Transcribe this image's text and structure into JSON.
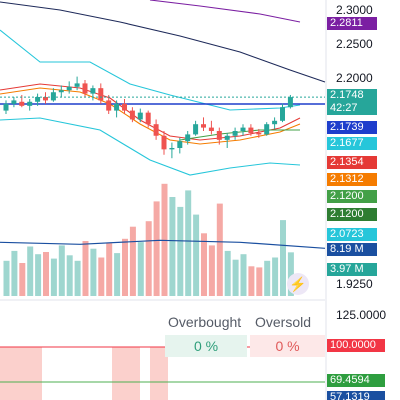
{
  "chart_data": {
    "type": "candlestick",
    "price_axis": {
      "ticks": [
        "2.3000",
        "2.2500",
        "2.2000",
        "1.9250"
      ]
    },
    "price_labels": [
      {
        "value": "2.2811",
        "color": "#7b1fa2"
      },
      {
        "value": "2.1748",
        "color": "#26a69a"
      },
      {
        "value": "42:27",
        "color": "#26a69a"
      },
      {
        "value": "2.1739",
        "color": "#1e3ecc"
      },
      {
        "value": "2.1677",
        "color": "#26c6da"
      },
      {
        "value": "2.1354",
        "color": "#e53935"
      },
      {
        "value": "2.1312",
        "color": "#f57c00"
      },
      {
        "value": "2.1200",
        "color": "#43a047"
      },
      {
        "value": "2.1200",
        "color": "#2e7d32"
      },
      {
        "value": "2.0723",
        "color": "#26c6da"
      },
      {
        "value": "8.19 M",
        "color": "#1a4fa0"
      },
      {
        "value": "3.97 M",
        "color": "#26a69a"
      }
    ],
    "candles": [
      {
        "o": 2.155,
        "h": 2.17,
        "l": 2.15,
        "c": 2.165
      },
      {
        "o": 2.165,
        "h": 2.175,
        "l": 2.16,
        "c": 2.17
      },
      {
        "o": 2.168,
        "h": 2.178,
        "l": 2.16,
        "c": 2.162
      },
      {
        "o": 2.162,
        "h": 2.172,
        "l": 2.155,
        "c": 2.168
      },
      {
        "o": 2.168,
        "h": 2.18,
        "l": 2.162,
        "c": 2.175
      },
      {
        "o": 2.175,
        "h": 2.182,
        "l": 2.165,
        "c": 2.17
      },
      {
        "o": 2.17,
        "h": 2.188,
        "l": 2.168,
        "c": 2.182
      },
      {
        "o": 2.182,
        "h": 2.192,
        "l": 2.175,
        "c": 2.185
      },
      {
        "o": 2.185,
        "h": 2.198,
        "l": 2.18,
        "c": 2.19
      },
      {
        "o": 2.19,
        "h": 2.205,
        "l": 2.185,
        "c": 2.195
      },
      {
        "o": 2.195,
        "h": 2.2,
        "l": 2.175,
        "c": 2.18
      },
      {
        "o": 2.18,
        "h": 2.192,
        "l": 2.17,
        "c": 2.188
      },
      {
        "o": 2.188,
        "h": 2.195,
        "l": 2.165,
        "c": 2.17
      },
      {
        "o": 2.17,
        "h": 2.178,
        "l": 2.15,
        "c": 2.155
      },
      {
        "o": 2.155,
        "h": 2.17,
        "l": 2.145,
        "c": 2.165
      },
      {
        "o": 2.165,
        "h": 2.172,
        "l": 2.15,
        "c": 2.155
      },
      {
        "o": 2.155,
        "h": 2.16,
        "l": 2.138,
        "c": 2.142
      },
      {
        "o": 2.142,
        "h": 2.158,
        "l": 2.138,
        "c": 2.152
      },
      {
        "o": 2.152,
        "h": 2.155,
        "l": 2.13,
        "c": 2.135
      },
      {
        "o": 2.135,
        "h": 2.142,
        "l": 2.112,
        "c": 2.118
      },
      {
        "o": 2.118,
        "h": 2.125,
        "l": 2.09,
        "c": 2.098
      },
      {
        "o": 2.098,
        "h": 2.108,
        "l": 2.085,
        "c": 2.1
      },
      {
        "o": 2.1,
        "h": 2.115,
        "l": 2.092,
        "c": 2.11
      },
      {
        "o": 2.11,
        "h": 2.125,
        "l": 2.105,
        "c": 2.12
      },
      {
        "o": 2.12,
        "h": 2.14,
        "l": 2.118,
        "c": 2.135
      },
      {
        "o": 2.135,
        "h": 2.145,
        "l": 2.125,
        "c": 2.13
      },
      {
        "o": 2.13,
        "h": 2.14,
        "l": 2.12,
        "c": 2.125
      },
      {
        "o": 2.125,
        "h": 2.13,
        "l": 2.105,
        "c": 2.112
      },
      {
        "o": 2.112,
        "h": 2.122,
        "l": 2.1,
        "c": 2.118
      },
      {
        "o": 2.118,
        "h": 2.13,
        "l": 2.112,
        "c": 2.125
      },
      {
        "o": 2.125,
        "h": 2.135,
        "l": 2.118,
        "c": 2.13
      },
      {
        "o": 2.13,
        "h": 2.135,
        "l": 2.118,
        "c": 2.122
      },
      {
        "o": 2.122,
        "h": 2.128,
        "l": 2.115,
        "c": 2.12
      },
      {
        "o": 2.12,
        "h": 2.138,
        "l": 2.118,
        "c": 2.135
      },
      {
        "o": 2.135,
        "h": 2.145,
        "l": 2.128,
        "c": 2.14
      },
      {
        "o": 2.14,
        "h": 2.165,
        "l": 2.138,
        "c": 2.16
      },
      {
        "o": 2.16,
        "h": 2.178,
        "l": 2.158,
        "c": 2.1748
      }
    ],
    "volume": [
      3.2,
      4.1,
      3.0,
      4.5,
      3.8,
      4.0,
      3.4,
      4.6,
      3.7,
      3.2,
      5.0,
      4.3,
      3.5,
      4.8,
      3.9,
      5.2,
      6.3,
      4.9,
      6.8,
      8.6,
      10.2,
      9.0,
      8.1,
      9.6,
      7.4,
      5.7,
      4.6,
      8.4,
      4.1,
      3.3,
      3.8,
      2.7,
      2.6,
      3.2,
      3.5,
      6.9,
      3.97
    ],
    "volume_ma": 4.7,
    "indicator": {
      "header_left": "Overbought",
      "header_right": "Oversold",
      "overbought_value": "0 %",
      "oversold_value": "0 %",
      "ticks": [
        "125.0000"
      ],
      "labels": [
        {
          "value": "100.0000",
          "color": "#f23645"
        },
        {
          "value": "69.4594",
          "color": "#2e9e3f"
        },
        {
          "value": "57.1319",
          "color": "#1a4fa0"
        }
      ]
    }
  }
}
